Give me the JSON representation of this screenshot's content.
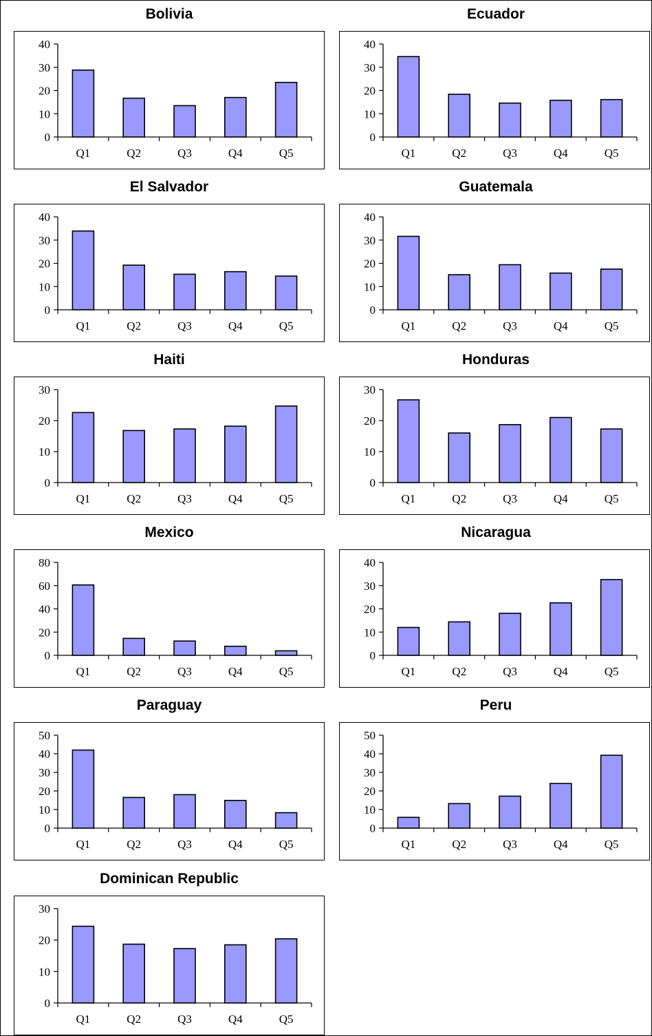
{
  "chart_data": [
    {
      "type": "bar",
      "title": "Bolivia",
      "categories": [
        "Q1",
        "Q2",
        "Q3",
        "Q4",
        "Q5"
      ],
      "values": [
        28.8,
        16.7,
        13.5,
        17.0,
        23.5
      ],
      "ylim": [
        0,
        40
      ],
      "yticks": [
        0,
        10,
        20,
        30,
        40
      ]
    },
    {
      "type": "bar",
      "title": "Ecuador",
      "categories": [
        "Q1",
        "Q2",
        "Q3",
        "Q4",
        "Q5"
      ],
      "values": [
        34.6,
        18.4,
        14.6,
        15.8,
        16.1
      ],
      "ylim": [
        0,
        40
      ],
      "yticks": [
        0,
        10,
        20,
        30,
        40
      ]
    },
    {
      "type": "bar",
      "title": "El Salvador",
      "categories": [
        "Q1",
        "Q2",
        "Q3",
        "Q4",
        "Q5"
      ],
      "values": [
        33.9,
        19.2,
        15.3,
        16.4,
        14.5
      ],
      "ylim": [
        0,
        40
      ],
      "yticks": [
        0,
        10,
        20,
        30,
        40
      ]
    },
    {
      "type": "bar",
      "title": "Guatemala",
      "categories": [
        "Q1",
        "Q2",
        "Q3",
        "Q4",
        "Q5"
      ],
      "values": [
        31.6,
        15.1,
        19.4,
        15.8,
        17.5
      ],
      "ylim": [
        0,
        40
      ],
      "yticks": [
        0,
        10,
        20,
        30,
        40
      ]
    },
    {
      "type": "bar",
      "title": "Haiti",
      "categories": [
        "Q1",
        "Q2",
        "Q3",
        "Q4",
        "Q5"
      ],
      "values": [
        22.6,
        16.8,
        17.3,
        18.2,
        24.7
      ],
      "ylim": [
        0,
        30
      ],
      "yticks": [
        0,
        10,
        20,
        30
      ]
    },
    {
      "type": "bar",
      "title": "Honduras",
      "categories": [
        "Q1",
        "Q2",
        "Q3",
        "Q4",
        "Q5"
      ],
      "values": [
        26.7,
        16.0,
        18.7,
        21.0,
        17.3
      ],
      "ylim": [
        0,
        30
      ],
      "yticks": [
        0,
        10,
        20,
        30
      ]
    },
    {
      "type": "bar",
      "title": "Mexico",
      "categories": [
        "Q1",
        "Q2",
        "Q3",
        "Q4",
        "Q5"
      ],
      "values": [
        60.6,
        14.6,
        12.3,
        7.8,
        3.9
      ],
      "ylim": [
        0,
        80
      ],
      "yticks": [
        0,
        20,
        40,
        60,
        80
      ]
    },
    {
      "type": "bar",
      "title": "Nicaragua",
      "categories": [
        "Q1",
        "Q2",
        "Q3",
        "Q4",
        "Q5"
      ],
      "values": [
        12.0,
        14.4,
        18.1,
        22.6,
        32.6
      ],
      "ylim": [
        0,
        40
      ],
      "yticks": [
        0,
        10,
        20,
        30,
        40
      ]
    },
    {
      "type": "bar",
      "title": "Paraguay",
      "categories": [
        "Q1",
        "Q2",
        "Q3",
        "Q4",
        "Q5"
      ],
      "values": [
        42.0,
        16.5,
        18.0,
        14.9,
        8.3
      ],
      "ylim": [
        0,
        50
      ],
      "yticks": [
        0,
        10,
        20,
        30,
        40,
        50
      ]
    },
    {
      "type": "bar",
      "title": "Peru",
      "categories": [
        "Q1",
        "Q2",
        "Q3",
        "Q4",
        "Q5"
      ],
      "values": [
        5.8,
        13.2,
        17.2,
        24.0,
        39.2
      ],
      "ylim": [
        0,
        50
      ],
      "yticks": [
        0,
        10,
        20,
        30,
        40,
        50
      ]
    },
    {
      "type": "bar",
      "title": "Dominican Republic",
      "categories": [
        "Q1",
        "Q2",
        "Q3",
        "Q4",
        "Q5"
      ],
      "values": [
        24.4,
        18.7,
        17.3,
        18.5,
        20.4
      ],
      "ylim": [
        0,
        30
      ],
      "yticks": [
        0,
        10,
        20,
        30
      ]
    }
  ],
  "colors": {
    "bar_fill": "#9999ff",
    "bar_stroke": "#000000",
    "axis": "#000000",
    "background": "#ffffff"
  }
}
